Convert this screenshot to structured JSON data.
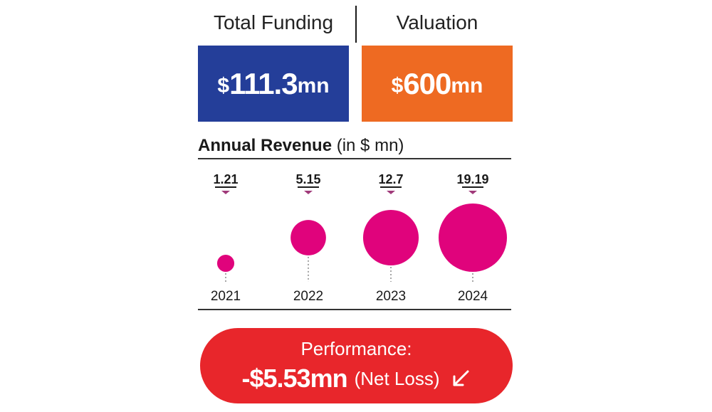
{
  "headers": {
    "funding_label": "Total Funding",
    "valuation_label": "Valuation"
  },
  "funding": {
    "currency": "$",
    "value": "111.3",
    "unit": "mn",
    "color": "#243e99"
  },
  "valuation": {
    "currency": "$",
    "value": "600",
    "unit": "mn",
    "color": "#ee6a22"
  },
  "revenue": {
    "title_bold": "Annual Revenue",
    "title_rest": " (in $ mn)"
  },
  "chart_data": {
    "type": "bubble",
    "categories": [
      "2021",
      "2022",
      "2023",
      "2024"
    ],
    "values": [
      1.21,
      5.15,
      12.7,
      19.19
    ],
    "value_labels": [
      "1.21",
      "5.15",
      "12.7",
      "19.19"
    ],
    "title": "Annual Revenue (in $ mn)",
    "bubble_color": "#e0037c",
    "marker_color": "#a03a7a"
  },
  "performance": {
    "label": "Performance:",
    "value": "-$5.53mn",
    "note": "(Net Loss)",
    "arrow_icon": "arrow-down-left-icon",
    "color": "#e8262b"
  }
}
